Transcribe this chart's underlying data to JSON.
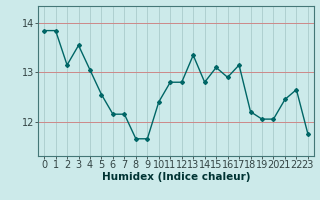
{
  "x": [
    0,
    1,
    2,
    3,
    4,
    5,
    6,
    7,
    8,
    9,
    10,
    11,
    12,
    13,
    14,
    15,
    16,
    17,
    18,
    19,
    20,
    21,
    22,
    23
  ],
  "y": [
    13.85,
    13.85,
    13.15,
    13.55,
    13.05,
    12.55,
    12.15,
    12.15,
    11.65,
    11.65,
    12.4,
    12.8,
    12.8,
    13.35,
    12.8,
    13.1,
    12.9,
    13.15,
    12.2,
    12.05,
    12.05,
    12.45,
    12.65,
    11.75
  ],
  "line_color": "#006666",
  "marker_color": "#006666",
  "bg_color": "#cceaea",
  "hgrid_color": "#cc8888",
  "vgrid_color": "#aacccc",
  "xlabel": "Humidex (Indice chaleur)",
  "xlabel_fontsize": 7.5,
  "tick_fontsize": 7,
  "yticks": [
    12,
    13,
    14
  ],
  "ylim": [
    11.3,
    14.35
  ],
  "xlim": [
    -0.5,
    23.5
  ]
}
